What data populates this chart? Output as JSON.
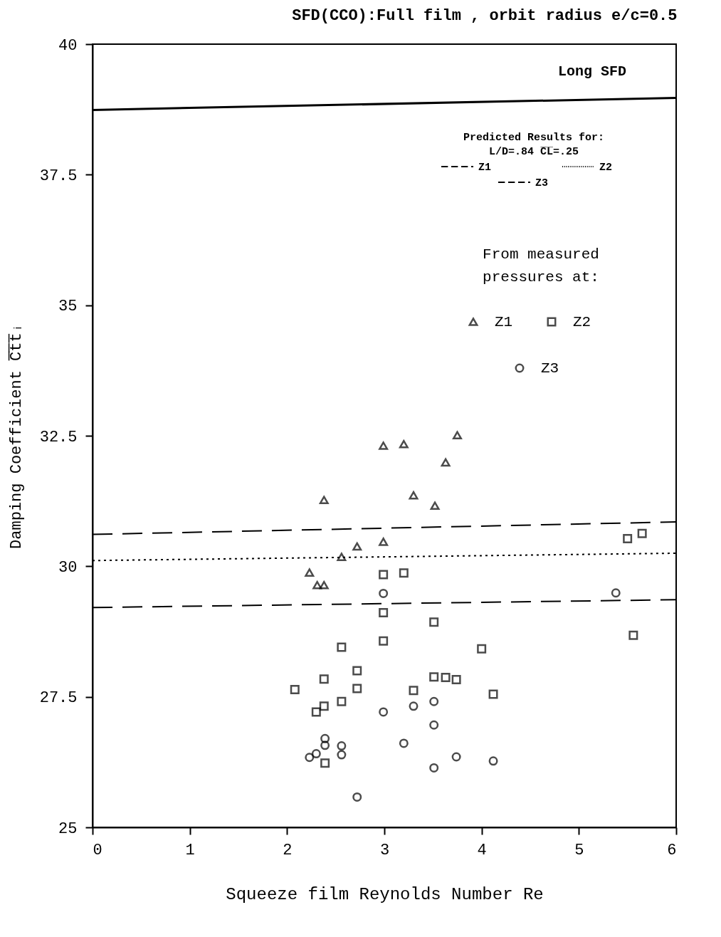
{
  "chart_data": {
    "type": "scatter",
    "title": "SFD(CCO):Full film , orbit radius e/c=0.5",
    "xlabel": "Squeeze film Reynolds Number Re",
    "ylabel": "Damping Coefficient C̅t̅t̅ᵢ",
    "xlim": [
      0,
      6
    ],
    "xticks": [
      0,
      1,
      2,
      3,
      4,
      5,
      6
    ],
    "ylim": [
      25,
      40
    ],
    "yticks": [
      25,
      27.5,
      30,
      32.5,
      35,
      37.5,
      40
    ],
    "grid": false,
    "legend": "top right",
    "annotations": [
      "Predicted Results for:",
      "L/D=.84  C̅L̅=.25",
      "From measured pressures at:"
    ],
    "series": [
      {
        "name": "Long SFD",
        "type": "line",
        "line_style": "solid",
        "color": "#000000",
        "x": [
          0,
          6
        ],
        "values": [
          38.74,
          38.97
        ]
      },
      {
        "name": "Z1",
        "type": "line",
        "line_style": "dashed",
        "color": "#000000",
        "x": [
          0,
          6
        ],
        "values": [
          30.61,
          30.85
        ]
      },
      {
        "name": "Z2",
        "type": "line",
        "line_style": "dotted",
        "color": "#000000",
        "x": [
          0,
          6
        ],
        "values": [
          30.11,
          30.25
        ]
      },
      {
        "name": "Z3",
        "type": "line",
        "line_style": "dashed",
        "color": "#000000",
        "x": [
          0,
          6
        ],
        "values": [
          29.21,
          29.36
        ]
      },
      {
        "name": "Z1",
        "marker": "triangle",
        "color": "#000000",
        "x": [
          2.99,
          3.2,
          3.75,
          3.63,
          2.38,
          3.3,
          3.52,
          2.72,
          2.99,
          2.56,
          2.23,
          2.31,
          2.38
        ],
        "values": [
          32.31,
          32.34,
          32.51,
          31.99,
          31.27,
          31.36,
          31.16,
          30.38,
          30.47,
          30.18,
          29.88,
          29.64,
          29.64
        ]
      },
      {
        "name": "Z2",
        "marker": "square",
        "color": "#000000",
        "x": [
          2.99,
          3.2,
          2.99,
          3.51,
          2.99,
          2.56,
          4.0,
          2.72,
          2.38,
          3.51,
          3.63,
          3.74,
          2.08,
          2.72,
          3.3,
          4.12,
          2.56,
          2.38,
          2.3,
          2.39,
          5.5,
          5.65,
          5.56
        ],
        "values": [
          29.84,
          29.87,
          29.11,
          28.93,
          28.57,
          28.45,
          28.42,
          28.0,
          27.84,
          27.88,
          27.87,
          27.83,
          27.64,
          27.66,
          27.62,
          27.55,
          27.41,
          27.32,
          27.21,
          26.23,
          30.53,
          30.63,
          28.68
        ]
      },
      {
        "name": "Z3",
        "marker": "circle",
        "color": "#000000",
        "x": [
          2.99,
          2.99,
          3.3,
          3.51,
          3.51,
          3.2,
          2.39,
          2.39,
          2.56,
          2.56,
          2.3,
          2.23,
          3.74,
          4.12,
          3.51,
          2.72,
          5.38
        ],
        "values": [
          29.48,
          27.21,
          27.32,
          27.41,
          26.96,
          26.61,
          26.7,
          26.57,
          26.56,
          26.39,
          26.41,
          26.34,
          26.35,
          26.27,
          26.14,
          25.58,
          29.49
        ]
      }
    ]
  }
}
